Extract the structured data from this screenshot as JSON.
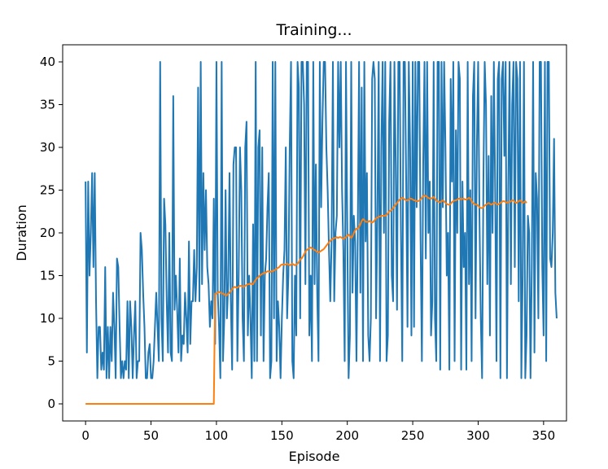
{
  "chart_data": {
    "type": "line",
    "title": "Training...",
    "xlabel": "Episode",
    "ylabel": "Duration",
    "xlim": [
      -17.5,
      367.5
    ],
    "ylim": [
      -2,
      42
    ],
    "xticks": [
      0,
      50,
      100,
      150,
      200,
      250,
      300,
      350
    ],
    "yticks": [
      0,
      5,
      10,
      15,
      20,
      25,
      30,
      35,
      40
    ],
    "grid": false,
    "legend": "none",
    "series": [
      {
        "color": "#1f77b4",
        "x_start": 0,
        "values": [
          26,
          6,
          26,
          15,
          20,
          27,
          16,
          27,
          12,
          3,
          9,
          9,
          4,
          6,
          4,
          16,
          3,
          9,
          3,
          9,
          5,
          13,
          9,
          3,
          17,
          16,
          9,
          3,
          5,
          3,
          5,
          4,
          12,
          3,
          12,
          9,
          3,
          8,
          12,
          3,
          5,
          5,
          20,
          18,
          13,
          9,
          3,
          3,
          6,
          7,
          3,
          3,
          5,
          9,
          13,
          9,
          5,
          40,
          10,
          5,
          24,
          21,
          12,
          6,
          20,
          6,
          5,
          36,
          11,
          15,
          11,
          6,
          17,
          5,
          8,
          7,
          13,
          10,
          6,
          19,
          7,
          12,
          12,
          18,
          12,
          16,
          37,
          12,
          40,
          14,
          27,
          18,
          25,
          16,
          14,
          9,
          12,
          10,
          24,
          7,
          40,
          13,
          9,
          3,
          40,
          5,
          10,
          25,
          10,
          14,
          27,
          12,
          4,
          28,
          30,
          30,
          5,
          15,
          30,
          25,
          10,
          5,
          30,
          33,
          8,
          15,
          10,
          3,
          21,
          5,
          40,
          5,
          30,
          32,
          8,
          30,
          5,
          15,
          17,
          23,
          27,
          3,
          5,
          40,
          10,
          40,
          5,
          12,
          9,
          3,
          10,
          15,
          18,
          30,
          10,
          15,
          30,
          40,
          5,
          3,
          15,
          8,
          40,
          37,
          10,
          40,
          40,
          35,
          14,
          40,
          40,
          8,
          15,
          5,
          40,
          14,
          28,
          13,
          5,
          40,
          23,
          33,
          40,
          40,
          30,
          25,
          18,
          12,
          19,
          40,
          12,
          20,
          22,
          40,
          30,
          40,
          25,
          18,
          5,
          40,
          20,
          3,
          8,
          40,
          13,
          22,
          19,
          5,
          20,
          40,
          13,
          37,
          5,
          40,
          19,
          27,
          8,
          5,
          10,
          38,
          40,
          38,
          10,
          22,
          40,
          5,
          30,
          40,
          20,
          40,
          5,
          8,
          33,
          40,
          15,
          12,
          40,
          28,
          11,
          40,
          40,
          20,
          5,
          40,
          40,
          26,
          9,
          40,
          30,
          8,
          40,
          9,
          40,
          23,
          40,
          40,
          19,
          5,
          28,
          40,
          17,
          40,
          20,
          26,
          8,
          12,
          40,
          10,
          5,
          40,
          40,
          4,
          40,
          23,
          40,
          30,
          15,
          20,
          4,
          38,
          26,
          40,
          5,
          32,
          20,
          40,
          38,
          4,
          26,
          16,
          20,
          4,
          40,
          14,
          25,
          5,
          36,
          40,
          10,
          30,
          40,
          22,
          10,
          3,
          26,
          40,
          35,
          14,
          29,
          8,
          36,
          20,
          40,
          25,
          5,
          38,
          40,
          3,
          38,
          40,
          29,
          40,
          3,
          25,
          40,
          14,
          35,
          40,
          16,
          40,
          38,
          12,
          40,
          3,
          15,
          40,
          3,
          8,
          22,
          20,
          3,
          16,
          40,
          6,
          27,
          24,
          10,
          40,
          40,
          16,
          8,
          40,
          5,
          40,
          40,
          17,
          16,
          20,
          31,
          13,
          10
        ]
      },
      {
        "color": "#ff7f0e",
        "x_start": 0,
        "values": [
          0,
          0,
          0,
          0,
          0,
          0,
          0,
          0,
          0,
          0,
          0,
          0,
          0,
          0,
          0,
          0,
          0,
          0,
          0,
          0,
          0,
          0,
          0,
          0,
          0,
          0,
          0,
          0,
          0,
          0,
          0,
          0,
          0,
          0,
          0,
          0,
          0,
          0,
          0,
          0,
          0,
          0,
          0,
          0,
          0,
          0,
          0,
          0,
          0,
          0,
          0,
          0,
          0,
          0,
          0,
          0,
          0,
          0,
          0,
          0,
          0,
          0,
          0,
          0,
          0,
          0,
          0,
          0,
          0,
          0,
          0,
          0,
          0,
          0,
          0,
          0,
          0,
          0,
          0,
          0,
          0,
          0,
          0,
          0,
          0,
          0,
          0,
          0,
          0,
          0,
          0,
          0,
          0,
          0,
          0,
          0,
          0,
          0,
          0,
          12.9,
          12.9,
          13.0,
          13.1,
          13.0,
          12.95,
          12.9,
          12.8,
          12.7,
          12.7,
          12.9,
          13.0,
          13.2,
          13.4,
          13.6,
          13.7,
          13.6,
          13.6,
          13.7,
          13.8,
          13.8,
          13.7,
          13.7,
          13.8,
          13.9,
          14.0,
          14.0,
          14.1,
          14.0,
          14.0,
          14.3,
          14.5,
          14.7,
          14.8,
          15.0,
          15.1,
          15.2,
          15.3,
          15.3,
          15.4,
          15.5,
          15.5,
          15.4,
          15.5,
          15.5,
          15.6,
          15.7,
          15.8,
          15.9,
          16.0,
          16.2,
          16.3,
          16.3,
          16.3,
          16.3,
          16.4,
          16.3,
          16.2,
          16.3,
          16.4,
          16.3,
          16.2,
          16.3,
          16.4,
          16.6,
          16.9,
          17.0,
          17.2,
          17.5,
          17.8,
          18.0,
          18.1,
          18.2,
          18.3,
          18.2,
          18.1,
          18.0,
          17.9,
          17.8,
          17.7,
          17.8,
          17.9,
          18.0,
          18.1,
          18.3,
          18.5,
          18.7,
          18.9,
          19.1,
          19.2,
          19.3,
          19.4,
          19.4,
          19.5,
          19.4,
          19.5,
          19.5,
          19.4,
          19.3,
          19.4,
          19.5,
          19.7,
          19.8,
          19.6,
          19.4,
          19.6,
          20.0,
          20.3,
          20.5,
          20.5,
          20.7,
          21.0,
          21.4,
          21.6,
          21.5,
          21.3,
          21.3,
          21.3,
          21.4,
          21.3,
          21.2,
          21.3,
          21.5,
          21.7,
          21.8,
          21.9,
          21.9,
          22.0,
          22.0,
          22.0,
          22.0,
          22.1,
          22.3,
          22.5,
          22.6,
          22.7,
          22.9,
          23.1,
          23.3,
          23.5,
          23.7,
          23.9,
          24.0,
          24.1,
          24.0,
          23.9,
          23.8,
          23.8,
          23.9,
          24.0,
          24.0,
          23.9,
          23.8,
          23.8,
          23.7,
          23.7,
          23.8,
          23.9,
          24.1,
          24.3,
          24.4,
          24.3,
          24.2,
          24.1,
          24.0,
          24.0,
          24.1,
          24.2,
          24.0,
          23.8,
          23.7,
          23.6,
          23.6,
          23.7,
          23.8,
          23.7,
          23.5,
          23.4,
          23.3,
          23.3,
          23.4,
          23.6,
          23.7,
          23.8,
          23.8,
          23.9,
          24.0,
          24.0,
          23.9,
          24.0,
          24.0,
          23.9,
          23.9,
          24.0,
          24.1,
          24.0,
          23.7,
          23.5,
          23.4,
          23.3,
          23.3,
          23.2,
          23.0,
          22.9,
          22.9,
          23.0,
          23.2,
          23.3,
          23.4,
          23.5,
          23.4,
          23.3,
          23.4,
          23.5,
          23.5,
          23.4,
          23.3,
          23.4,
          23.5,
          23.6,
          23.7,
          23.7,
          23.6,
          23.5,
          23.6,
          23.6,
          23.7,
          23.8,
          23.8,
          23.6,
          23.5,
          23.6,
          23.7,
          23.8,
          23.7,
          23.5,
          23.6,
          23.7,
          23.5
        ]
      }
    ]
  }
}
